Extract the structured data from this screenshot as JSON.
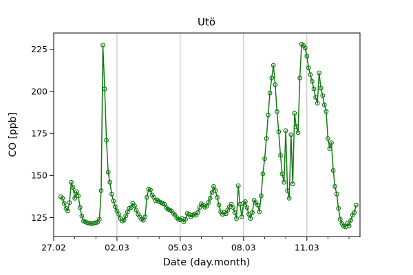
{
  "figure": {
    "background_color": "#ffffff",
    "frame_color": "#000000",
    "grid_color": "#b3b3b3"
  },
  "chart_data": {
    "type": "line",
    "title": "Utö",
    "xlabel": "Date (day.month)",
    "ylabel": "CO [ppb]",
    "line_color": "#0f7a0f",
    "marker": "open-circle",
    "grid": "vertical-at-major-x-ticks-only",
    "legend": "none",
    "x_axis": {
      "unit": "day.month",
      "start_date": "27.02",
      "xlim_days": [
        0,
        14.52
      ],
      "major_ticks": [
        {
          "day": 0,
          "label": "27.02"
        },
        {
          "day": 3,
          "label": "02.03"
        },
        {
          "day": 6,
          "label": "05.03"
        },
        {
          "day": 9,
          "label": "08.03"
        },
        {
          "day": 12,
          "label": "11.03"
        }
      ],
      "minor_tick_every_days": 1
    },
    "y_axis": {
      "ylim": [
        113.6,
        234.7
      ],
      "major_ticks": [
        125,
        150,
        175,
        200,
        225
      ]
    },
    "sampling": {
      "first_sample_hour_offset": 8,
      "sample_interval_hours": 2
    },
    "values": [
      137.5,
      136.5,
      133.5,
      130.5,
      129,
      134,
      146,
      143,
      136.5,
      140.5,
      138,
      131,
      126,
      123,
      122.5,
      122,
      121.8,
      121.5,
      121.5,
      121.8,
      122,
      122.3,
      124,
      141,
      227.5,
      201.5,
      171,
      152,
      146,
      139,
      135,
      131.5,
      129,
      127,
      124.5,
      123,
      123.5,
      126,
      128.5,
      130.5,
      131,
      133.5,
      132,
      129.5,
      127,
      125.5,
      124,
      123.5,
      125.5,
      137,
      142,
      141.5,
      138.5,
      137,
      135,
      135.5,
      134.5,
      134,
      133.5,
      133,
      131,
      130,
      129.5,
      129,
      127.5,
      126.5,
      125,
      124,
      123.7,
      124.5,
      122.5,
      124,
      127.5,
      127,
      125.5,
      126.5,
      127,
      126.5,
      128,
      131,
      133.2,
      132.5,
      131.2,
      131.8,
      134,
      136.5,
      140,
      143.5,
      141,
      137,
      132.5,
      128.5,
      127,
      128,
      127.3,
      129.5,
      131.5,
      133,
      131,
      128,
      124.5,
      144,
      133,
      125.5,
      133.5,
      134.5,
      131,
      127,
      124.5,
      128,
      135.3,
      134,
      132.5,
      128.5,
      138,
      151,
      160,
      172,
      186,
      199,
      208,
      215.5,
      204,
      188,
      176,
      162,
      151,
      146,
      176.7,
      141,
      136.5,
      174.3,
      145,
      187,
      179,
      175.5,
      208,
      228,
      227.3,
      225.8,
      221,
      214,
      210,
      206,
      201.5,
      196.5,
      193,
      211,
      202,
      197.5,
      192,
      188,
      172,
      166,
      169.5,
      153,
      143.5,
      139,
      130.5,
      124,
      121.5,
      120,
      119.5,
      121.5,
      120,
      123.5,
      126.5,
      128,
      132.5
    ]
  }
}
